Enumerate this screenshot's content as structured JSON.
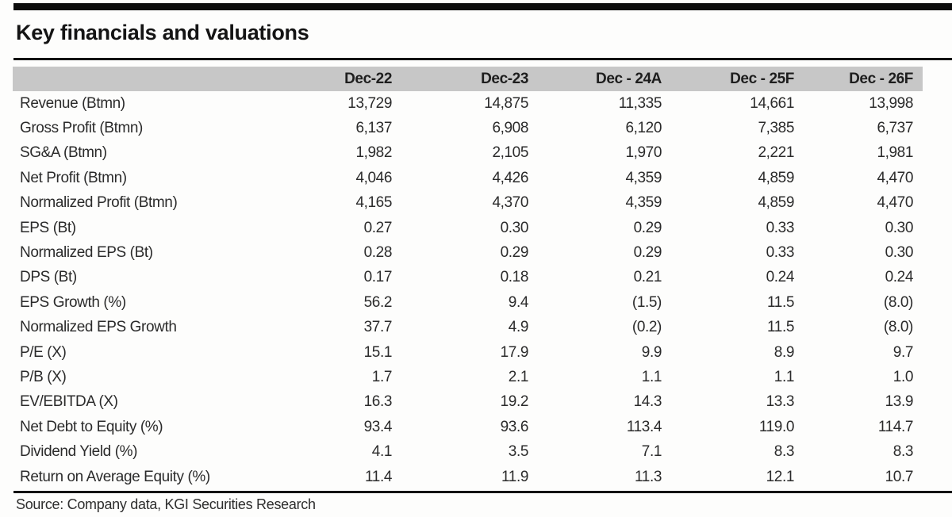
{
  "page": {
    "title": "Key financials and valuations",
    "source": "Source: Company data, KGI Securities Research"
  },
  "table": {
    "columns": [
      "",
      "Dec-22",
      "Dec-23",
      "Dec - 24A",
      "Dec - 25F",
      "Dec - 26F"
    ],
    "rows": [
      {
        "label": "Revenue (Btmn)",
        "values": [
          "13,729",
          "14,875",
          "11,335",
          "14,661",
          "13,998"
        ]
      },
      {
        "label": "Gross Profit (Btmn)",
        "values": [
          "6,137",
          "6,908",
          "6,120",
          "7,385",
          "6,737"
        ]
      },
      {
        "label": "SG&A (Btmn)",
        "values": [
          "1,982",
          "2,105",
          "1,970",
          "2,221",
          "1,981"
        ]
      },
      {
        "label": "Net Profit (Btmn)",
        "values": [
          "4,046",
          "4,426",
          "4,359",
          "4,859",
          "4,470"
        ]
      },
      {
        "label": "Normalized Profit (Btmn)",
        "values": [
          "4,165",
          "4,370",
          "4,359",
          "4,859",
          "4,470"
        ]
      },
      {
        "label": "EPS (Bt)",
        "values": [
          "0.27",
          "0.30",
          "0.29",
          "0.33",
          "0.30"
        ]
      },
      {
        "label": "Normalized EPS (Bt)",
        "values": [
          "0.28",
          "0.29",
          "0.29",
          "0.33",
          "0.30"
        ]
      },
      {
        "label": "DPS (Bt)",
        "values": [
          "0.17",
          "0.18",
          "0.21",
          "0.24",
          "0.24"
        ]
      },
      {
        "label": "EPS Growth (%)",
        "values": [
          "56.2",
          "9.4",
          "(1.5)",
          "11.5",
          "(8.0)"
        ]
      },
      {
        "label": "Normalized EPS Growth",
        "values": [
          "37.7",
          "4.9",
          "(0.2)",
          "11.5",
          "(8.0)"
        ]
      },
      {
        "label": "P/E (X)",
        "values": [
          "15.1",
          "17.9",
          "9.9",
          "8.9",
          "9.7"
        ]
      },
      {
        "label": "P/B (X)",
        "values": [
          "1.7",
          "2.1",
          "1.1",
          "1.1",
          "1.0"
        ]
      },
      {
        "label": "EV/EBITDA (X)",
        "values": [
          "16.3",
          "19.2",
          "14.3",
          "13.3",
          "13.9"
        ]
      },
      {
        "label": "Net Debt to Equity (%)",
        "values": [
          "93.4",
          "93.6",
          "113.4",
          "119.0",
          "114.7"
        ]
      },
      {
        "label": "Dividend Yield (%)",
        "values": [
          "4.1",
          "3.5",
          "7.1",
          "8.3",
          "8.3"
        ]
      },
      {
        "label": "Return on Average Equity (%)",
        "values": [
          "11.4",
          "11.9",
          "11.3",
          "12.1",
          "10.7"
        ]
      }
    ]
  },
  "colors": {
    "header_band": "#c7c7c7",
    "rule": "#131313",
    "text": "#2b2b2b"
  }
}
